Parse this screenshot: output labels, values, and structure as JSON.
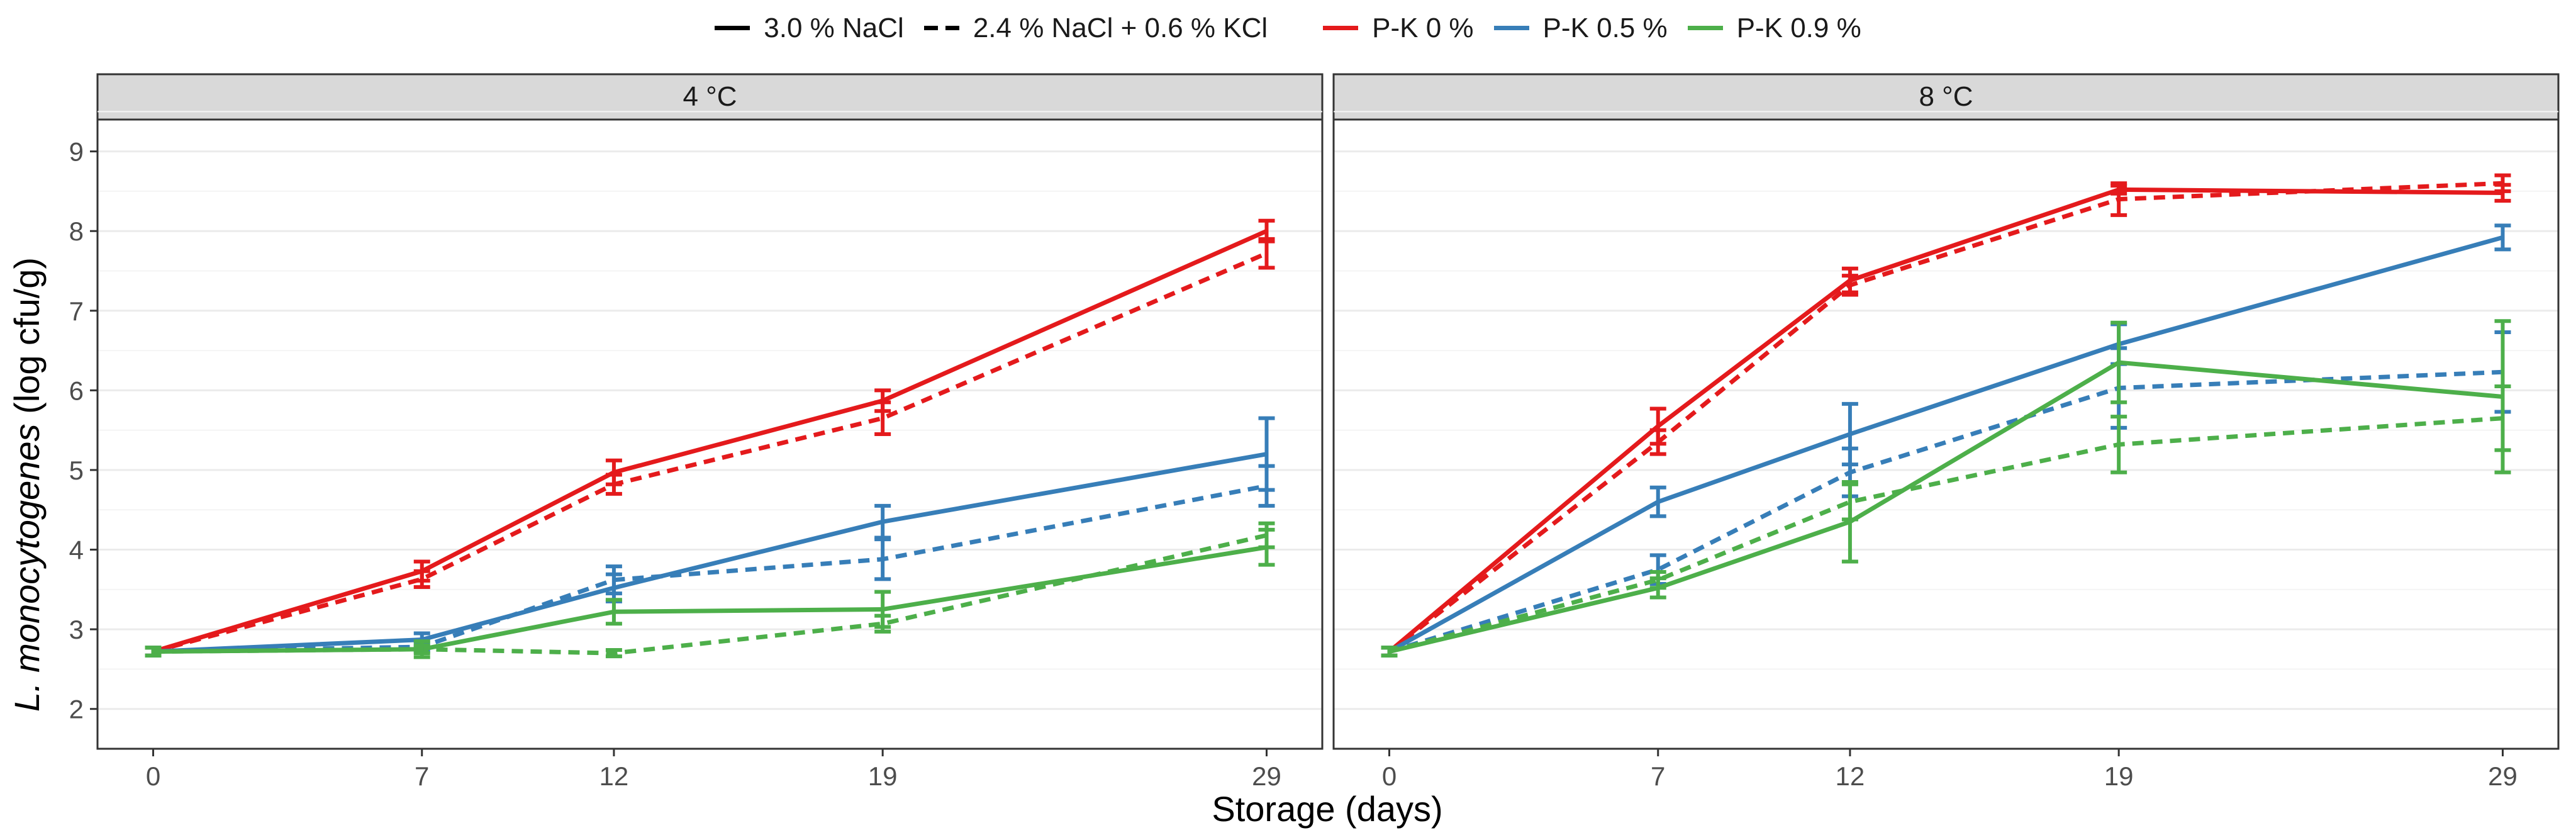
{
  "legend": {
    "linetype": [
      {
        "label": "3.0 % NaCl",
        "style": "solid"
      },
      {
        "label": "2.4 % NaCl + 0.6 % KCl",
        "style": "dashed"
      }
    ],
    "color": [
      {
        "label": "P-K 0 %",
        "color": "#e41a1c"
      },
      {
        "label": "P-K 0.5 %",
        "color": "#377eb8"
      },
      {
        "label": "P-K 0.9 %",
        "color": "#4daf4a"
      }
    ]
  },
  "chart_data": [
    {
      "type": "line",
      "title": "4 °C",
      "xlabel": "Storage (days)",
      "ylabel": "L. monocytogenes (log cfu/g)",
      "x": [
        0,
        7,
        12,
        19,
        29
      ],
      "xticks": [
        "0",
        "7",
        "12",
        "19",
        "29"
      ],
      "ylim": [
        1.5,
        9.4
      ],
      "yticks": [
        2,
        3,
        4,
        5,
        6,
        7,
        8,
        9
      ],
      "grid": true,
      "series": [
        {
          "name": "3.0 % NaCl / P-K 0 %",
          "color": "#e41a1c",
          "linetype": "solid",
          "values": [
            2.72,
            3.73,
            4.97,
            5.87,
            8.0
          ],
          "err": [
            0.05,
            0.12,
            0.15,
            0.13,
            0.13
          ]
        },
        {
          "name": "2.4 % NaCl + 0.6 % KCl / P-K 0 %",
          "color": "#e41a1c",
          "linetype": "dashed",
          "values": [
            2.72,
            3.63,
            4.82,
            5.65,
            7.72
          ],
          "err": [
            0.05,
            0.1,
            0.12,
            0.2,
            0.18
          ]
        },
        {
          "name": "3.0 % NaCl / P-K 0.5 %",
          "color": "#377eb8",
          "linetype": "solid",
          "values": [
            2.72,
            2.87,
            3.52,
            4.35,
            5.2
          ],
          "err": [
            0.05,
            0.08,
            0.17,
            0.2,
            0.45
          ]
        },
        {
          "name": "2.4 % NaCl + 0.6 % KCl / P-K 0.5 %",
          "color": "#377eb8",
          "linetype": "dashed",
          "values": [
            2.72,
            2.78,
            3.62,
            3.88,
            4.8
          ],
          "err": [
            0.05,
            0.06,
            0.17,
            0.25,
            0.25
          ]
        },
        {
          "name": "3.0 % NaCl / P-K 0.9 %",
          "color": "#4daf4a",
          "linetype": "solid",
          "values": [
            2.72,
            2.75,
            3.22,
            3.25,
            4.03
          ],
          "err": [
            0.05,
            0.1,
            0.15,
            0.22,
            0.22
          ]
        },
        {
          "name": "2.4 % NaCl + 0.6 % KCl / P-K 0.9 %",
          "color": "#4daf4a",
          "linetype": "dashed",
          "values": [
            2.72,
            2.75,
            2.7,
            3.07,
            4.18
          ],
          "err": [
            0.05,
            0.05,
            0.04,
            0.1,
            0.15
          ]
        }
      ]
    },
    {
      "type": "line",
      "title": "8 °C",
      "xlabel": "Storage (days)",
      "ylabel": "L. monocytogenes (log cfu/g)",
      "x": [
        0,
        7,
        12,
        19,
        29
      ],
      "xticks": [
        "0",
        "7",
        "12",
        "19",
        "29"
      ],
      "ylim": [
        1.5,
        9.4
      ],
      "yticks": [
        2,
        3,
        4,
        5,
        6,
        7,
        8,
        9
      ],
      "grid": true,
      "series": [
        {
          "name": "3.0 % NaCl / P-K 0 %",
          "color": "#e41a1c",
          "linetype": "solid",
          "values": [
            2.72,
            5.55,
            7.38,
            8.52,
            8.48
          ],
          "err": [
            0.05,
            0.22,
            0.15,
            0.05,
            0.1
          ]
        },
        {
          "name": "2.4 % NaCl + 0.6 % KCl / P-K 0 %",
          "color": "#e41a1c",
          "linetype": "dashed",
          "values": [
            2.72,
            5.35,
            7.32,
            8.4,
            8.6
          ],
          "err": [
            0.05,
            0.15,
            0.12,
            0.2,
            0.1
          ]
        },
        {
          "name": "3.0 % NaCl / P-K 0.5 %",
          "color": "#377eb8",
          "linetype": "solid",
          "values": [
            2.72,
            4.6,
            5.45,
            6.58,
            7.92
          ],
          "err": [
            0.05,
            0.18,
            0.38,
            0.25,
            0.15
          ]
        },
        {
          "name": "2.4 % NaCl + 0.6 % KCl / P-K 0.5 %",
          "color": "#377eb8",
          "linetype": "dashed",
          "values": [
            2.72,
            3.75,
            4.97,
            6.03,
            6.23
          ],
          "err": [
            0.05,
            0.18,
            0.3,
            0.5,
            0.5
          ]
        },
        {
          "name": "3.0 % NaCl / P-K 0.9 %",
          "color": "#4daf4a",
          "linetype": "solid",
          "values": [
            2.72,
            3.52,
            4.35,
            6.35,
            5.92
          ],
          "err": [
            0.05,
            0.12,
            0.5,
            0.5,
            0.95
          ]
        },
        {
          "name": "2.4 % NaCl + 0.6 % KCl / P-K 0.9 %",
          "color": "#4daf4a",
          "linetype": "dashed",
          "values": [
            2.72,
            3.62,
            4.6,
            5.32,
            5.65
          ],
          "err": [
            0.05,
            0.1,
            0.22,
            0.35,
            0.4
          ]
        }
      ]
    }
  ]
}
